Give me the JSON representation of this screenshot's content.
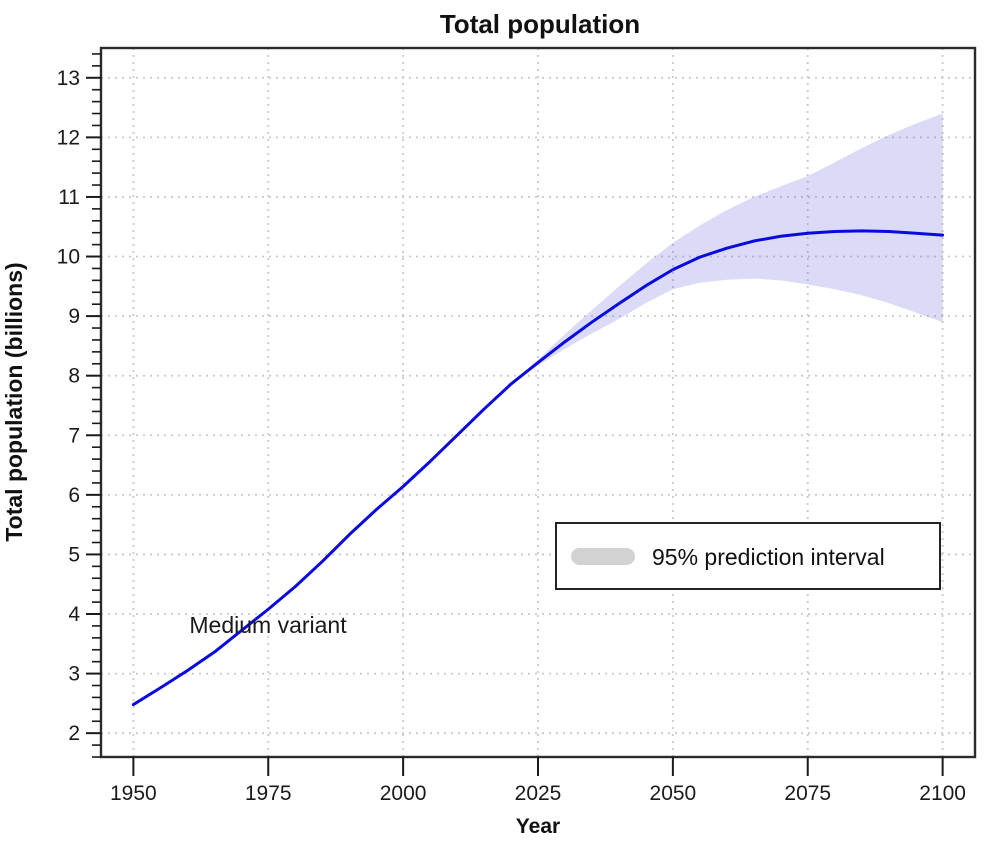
{
  "chart_data": {
    "type": "line",
    "title": "Total population",
    "xlabel": "Year",
    "ylabel": "Total population (billions)",
    "xlim": [
      1944,
      2106
    ],
    "ylim": [
      1.6,
      13.5
    ],
    "x_ticks": [
      "1950",
      "1975",
      "2000",
      "2025",
      "2050",
      "2075",
      "2100"
    ],
    "x_tick_years": [
      1950,
      1975,
      2000,
      2025,
      2050,
      2075,
      2100
    ],
    "y_ticks": [
      "2",
      "3",
      "4",
      "5",
      "6",
      "7",
      "8",
      "9",
      "10",
      "11",
      "12",
      "13"
    ],
    "y_tick_values": [
      2,
      3,
      4,
      5,
      6,
      7,
      8,
      9,
      10,
      11,
      12,
      13
    ],
    "y_minor_tick_step": 0.2,
    "grid": "dotted",
    "grid_color": "#c9c9c9",
    "legend": {
      "label": "95% prediction interval",
      "key_color": "#d2d2d2",
      "position": "right-center"
    },
    "annotation": {
      "text": "Medium variant",
      "x": 1975,
      "y": 3.75
    },
    "series": [
      {
        "name": "Medium variant",
        "color": "#0a0ae0",
        "x": [
          1950,
          1955,
          1960,
          1965,
          1970,
          1975,
          1980,
          1985,
          1990,
          1995,
          2000,
          2005,
          2010,
          2015,
          2020,
          2025,
          2030,
          2035,
          2040,
          2045,
          2050,
          2055,
          2060,
          2065,
          2070,
          2075,
          2080,
          2085,
          2090,
          2095,
          2100
        ],
        "y": [
          2.48,
          2.76,
          3.05,
          3.36,
          3.72,
          4.08,
          4.46,
          4.88,
          5.33,
          5.75,
          6.14,
          6.56,
          7.0,
          7.44,
          7.86,
          8.22,
          8.57,
          8.9,
          9.21,
          9.51,
          9.78,
          9.99,
          10.14,
          10.26,
          10.34,
          10.39,
          10.42,
          10.43,
          10.42,
          10.39,
          10.36
        ]
      }
    ],
    "band": {
      "name": "95% prediction interval",
      "fill_color": "#5a5ae0",
      "fill_opacity": 0.22,
      "x": [
        2022,
        2025,
        2030,
        2035,
        2040,
        2045,
        2050,
        2055,
        2060,
        2065,
        2070,
        2075,
        2080,
        2085,
        2090,
        2095,
        2100
      ],
      "lower": [
        7.99,
        8.17,
        8.45,
        8.71,
        8.95,
        9.22,
        9.45,
        9.56,
        9.61,
        9.63,
        9.6,
        9.53,
        9.45,
        9.35,
        9.22,
        9.06,
        8.9
      ],
      "upper": [
        7.99,
        8.27,
        8.7,
        9.1,
        9.5,
        9.88,
        10.23,
        10.52,
        10.78,
        11.0,
        11.18,
        11.35,
        11.58,
        11.82,
        12.04,
        12.23,
        12.4
      ]
    }
  }
}
